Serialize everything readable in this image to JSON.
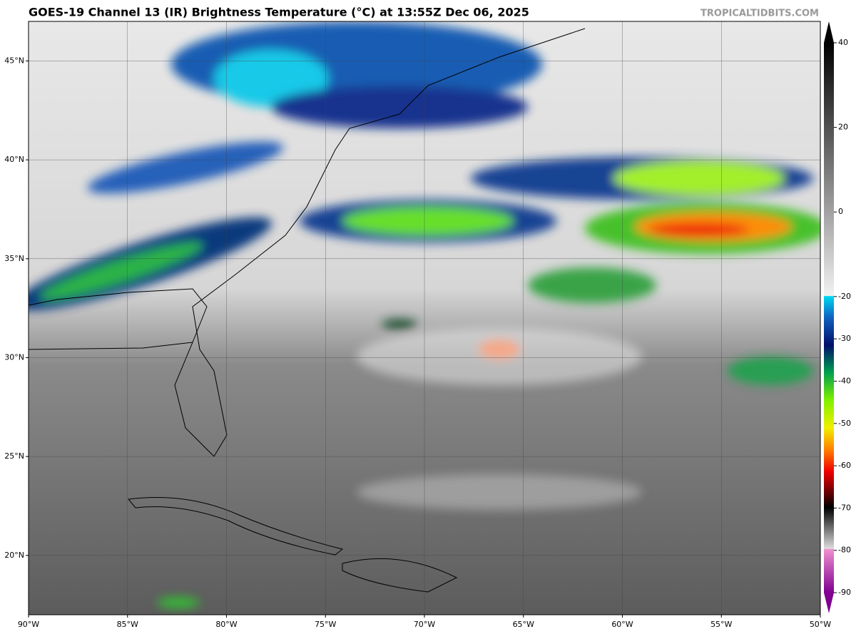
{
  "map": {
    "title": "GOES-19 Channel 13 (IR) Brightness Temperature (°C) at 13:55Z Dec 06, 2025",
    "source": "TROPICALTIDBITS.COM",
    "lonlim": [
      -90,
      -50
    ],
    "latlim": [
      17,
      47
    ],
    "lon_ticks": [
      {
        "value": -90,
        "label": "90°W"
      },
      {
        "value": -85,
        "label": "85°W"
      },
      {
        "value": -80,
        "label": "80°W"
      },
      {
        "value": -75,
        "label": "75°W"
      },
      {
        "value": -70,
        "label": "70°W"
      },
      {
        "value": -65,
        "label": "65°W"
      },
      {
        "value": -60,
        "label": "60°W"
      },
      {
        "value": -55,
        "label": "55°W"
      },
      {
        "value": -50,
        "label": "50°W"
      }
    ],
    "lat_ticks": [
      {
        "value": 20,
        "label": "20°N"
      },
      {
        "value": 25,
        "label": "25°N"
      },
      {
        "value": 30,
        "label": "30°N"
      },
      {
        "value": 35,
        "label": "35°N"
      },
      {
        "value": 40,
        "label": "40°N"
      },
      {
        "value": 45,
        "label": "45°N"
      }
    ],
    "colorbar": {
      "lim": [
        -90,
        40
      ],
      "ticks": [
        40,
        20,
        0,
        -20,
        -30,
        -40,
        -50,
        -60,
        -70,
        -80,
        -90
      ]
    }
  }
}
